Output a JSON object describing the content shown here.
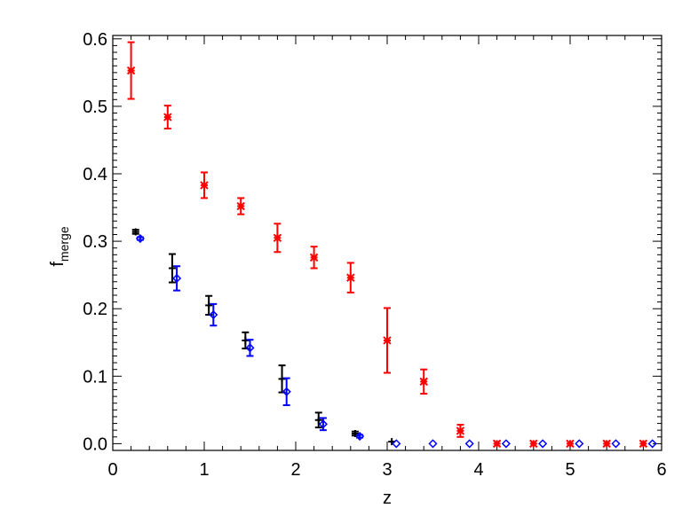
{
  "chart_data": {
    "type": "scatter",
    "title": "",
    "xlabel": "z",
    "ylabel": "f",
    "ylabel_subscript": "merge",
    "xlim": [
      0,
      6
    ],
    "ylim": [
      -0.01,
      0.605
    ],
    "x_ticks": [
      0,
      1,
      2,
      3,
      4,
      5,
      6
    ],
    "x_tick_labels": [
      "0",
      "1",
      "2",
      "3",
      "4",
      "5",
      "6"
    ],
    "y_ticks": [
      0.0,
      0.1,
      0.2,
      0.3,
      0.4,
      0.5,
      0.6
    ],
    "y_tick_labels": [
      "0.0",
      "0.1",
      "0.2",
      "0.3",
      "0.4",
      "0.5",
      "0.6"
    ],
    "grid": false,
    "legend": "none",
    "series": [
      {
        "color": "#ff0000",
        "marker": "asterisk",
        "points": [
          {
            "x": 0.2,
            "y": 0.553,
            "err": 0.042
          },
          {
            "x": 0.6,
            "y": 0.484,
            "err": 0.017
          },
          {
            "x": 1.0,
            "y": 0.383,
            "err": 0.019
          },
          {
            "x": 1.4,
            "y": 0.352,
            "err": 0.012
          },
          {
            "x": 1.8,
            "y": 0.305,
            "err": 0.021
          },
          {
            "x": 2.2,
            "y": 0.276,
            "err": 0.016
          },
          {
            "x": 2.6,
            "y": 0.246,
            "err": 0.022
          },
          {
            "x": 3.0,
            "y": 0.153,
            "err": 0.048
          },
          {
            "x": 3.4,
            "y": 0.092,
            "err": 0.018
          },
          {
            "x": 3.8,
            "y": 0.019,
            "err": 0.009
          },
          {
            "x": 4.2,
            "y": 0.0,
            "err": 0
          },
          {
            "x": 4.6,
            "y": 0.0,
            "err": 0
          },
          {
            "x": 5.0,
            "y": 0.0,
            "err": 0
          },
          {
            "x": 5.4,
            "y": 0.0,
            "err": 0
          },
          {
            "x": 5.8,
            "y": 0.0,
            "err": 0
          }
        ]
      },
      {
        "color": "#000000",
        "marker": "plus",
        "points": [
          {
            "x": 0.25,
            "y": 0.314,
            "err": 0.003
          },
          {
            "x": 0.65,
            "y": 0.26,
            "err": 0.021
          },
          {
            "x": 1.05,
            "y": 0.205,
            "err": 0.014
          },
          {
            "x": 1.45,
            "y": 0.153,
            "err": 0.012
          },
          {
            "x": 1.85,
            "y": 0.096,
            "err": 0.02
          },
          {
            "x": 2.25,
            "y": 0.035,
            "err": 0.011
          },
          {
            "x": 2.65,
            "y": 0.015,
            "err": 0.003
          },
          {
            "x": 3.05,
            "y": 0.003,
            "err": 0.0
          }
        ]
      },
      {
        "color": "#0000ff",
        "marker": "diamond",
        "points": [
          {
            "x": 0.3,
            "y": 0.304,
            "err": 0.002
          },
          {
            "x": 0.7,
            "y": 0.245,
            "err": 0.018
          },
          {
            "x": 1.1,
            "y": 0.191,
            "err": 0.016
          },
          {
            "x": 1.5,
            "y": 0.142,
            "err": 0.012
          },
          {
            "x": 1.9,
            "y": 0.077,
            "err": 0.02
          },
          {
            "x": 2.3,
            "y": 0.029,
            "err": 0.009
          },
          {
            "x": 2.7,
            "y": 0.011,
            "err": 0.002
          },
          {
            "x": 3.1,
            "y": 0.0,
            "err": 0
          },
          {
            "x": 3.5,
            "y": 0.0,
            "err": 0
          },
          {
            "x": 3.9,
            "y": 0.0,
            "err": 0
          },
          {
            "x": 4.3,
            "y": 0.0,
            "err": 0
          },
          {
            "x": 4.7,
            "y": 0.0,
            "err": 0
          },
          {
            "x": 5.1,
            "y": 0.0,
            "err": 0
          },
          {
            "x": 5.5,
            "y": 0.0,
            "err": 0
          },
          {
            "x": 5.9,
            "y": 0.0,
            "err": 0
          }
        ]
      }
    ]
  }
}
